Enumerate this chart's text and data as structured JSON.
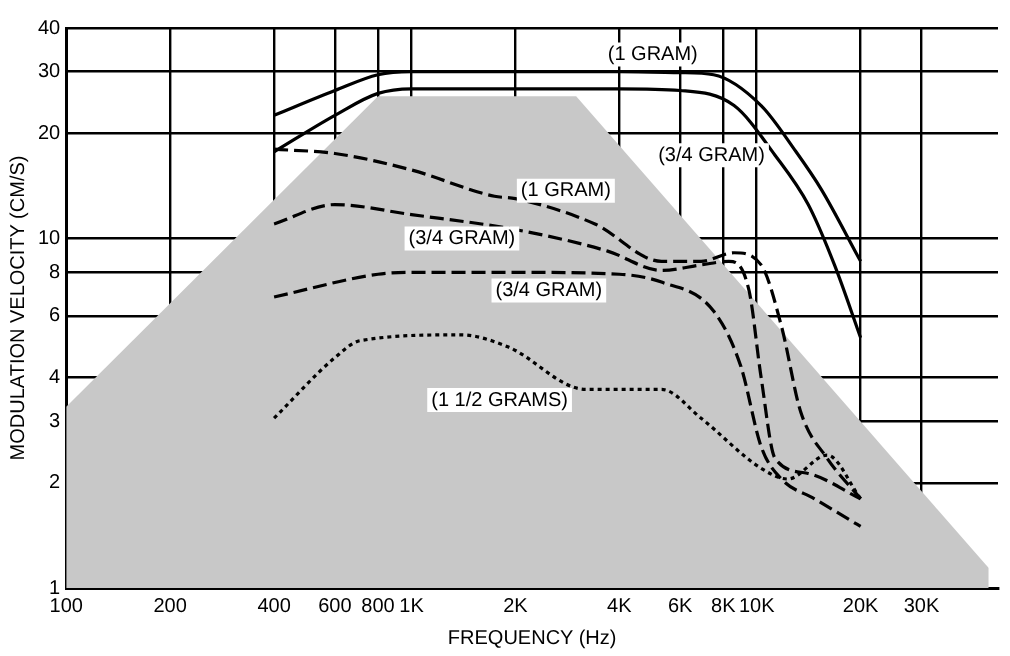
{
  "chart_data": {
    "type": "line",
    "xlabel": "FREQUENCY (Hz)",
    "ylabel": "MODULATION VELOCITY (CM/S)",
    "log": "xy",
    "grid": true,
    "legend": false,
    "marker": "none",
    "xlim": [
      100,
      50000
    ],
    "ylim": [
      1,
      40
    ],
    "xticks": [
      100,
      200,
      400,
      600,
      800,
      {
        "value": 1000,
        "label": "1K"
      },
      {
        "value": 2000,
        "label": "2K"
      },
      {
        "value": 4000,
        "label": "4K"
      },
      {
        "value": 6000,
        "label": "6K"
      },
      {
        "value": 8000,
        "label": "8K"
      },
      {
        "value": 10000,
        "label": "10K"
      },
      {
        "value": 20000,
        "label": "20K"
      },
      {
        "value": 30000,
        "label": "30K"
      }
    ],
    "yticks": [
      1,
      2,
      3,
      4,
      6,
      8,
      10,
      20,
      30,
      40
    ],
    "series": [
      {
        "type": "area",
        "color": "#c8c8c8",
        "x": [
          100,
          800,
          3000,
          47000
        ],
        "values": [
          3.3,
          25.5,
          25.5,
          1.14
        ]
      },
      {
        "name": "(1 GRAM)",
        "color": "#000000",
        "line_style": "solid",
        "x": [
          400,
          600,
          800,
          1000,
          2000,
          4000,
          6000,
          7500,
          10300,
          12900,
          15400,
          20000
        ],
        "values": [
          22.5,
          26.5,
          29.4,
          30,
          30,
          30,
          29.8,
          29.4,
          24,
          17.9,
          13.8,
          8.6
        ]
      },
      {
        "name": "(3/4 GRAM)",
        "color": "#000000",
        "line_style": "solid",
        "x": [
          400,
          600,
          800,
          1000,
          2000,
          4000,
          6000,
          8600,
          11300,
          14100,
          16800,
          20000
        ],
        "values": [
          17.7,
          22.5,
          26,
          26.8,
          26.8,
          26.8,
          26.5,
          24,
          17.3,
          12.5,
          8.4,
          5.2
        ]
      },
      {
        "name": "(1 GRAM)",
        "color": "#000000",
        "line_style": "dashed",
        "x": [
          400,
          600,
          1000,
          1740,
          2000,
          3400,
          5300,
          6900,
          8600,
          10300,
          11800,
          13400,
          16000,
          20000
        ],
        "values": [
          18,
          17.5,
          15.7,
          13.2,
          13,
          11,
          8.6,
          8.6,
          9.1,
          8.4,
          5.6,
          3.2,
          2.35,
          1.8
        ]
      },
      {
        "name": "(3/4 GRAM)",
        "color": "#000000",
        "line_style": "dashed",
        "x": [
          400,
          600,
          1000,
          2000,
          3700,
          5300,
          6900,
          8300,
          9500,
          10300,
          11300,
          14000,
          20000
        ],
        "values": [
          11,
          12.5,
          11.7,
          10.6,
          9.2,
          8.1,
          8.4,
          8.6,
          7.1,
          4,
          2.35,
          2.13,
          1.8
        ]
      },
      {
        "name": "(3/4 GRAM)",
        "color": "#000000",
        "line_style": "dashed",
        "x": [
          400,
          800,
          1000,
          2000,
          4000,
          5300,
          7500,
          9000,
          10300,
          11800,
          14700,
          20000
        ],
        "values": [
          6.8,
          7.9,
          8,
          8,
          7.9,
          7.5,
          6.2,
          4.3,
          2.54,
          2.05,
          1.8,
          1.5
        ]
      },
      {
        "name": "(1 1/2 GRAMS)",
        "color": "#000000",
        "line_style": "dotted",
        "x": [
          400,
          600,
          710,
          1390,
          1900,
          3200,
          5300,
          6900,
          10300,
          12300,
          16000,
          20000
        ],
        "values": [
          3.06,
          4.56,
          5.1,
          5.3,
          4.9,
          3.7,
          3.7,
          3.06,
          2.2,
          2.05,
          2.4,
          1.8
        ]
      }
    ]
  }
}
